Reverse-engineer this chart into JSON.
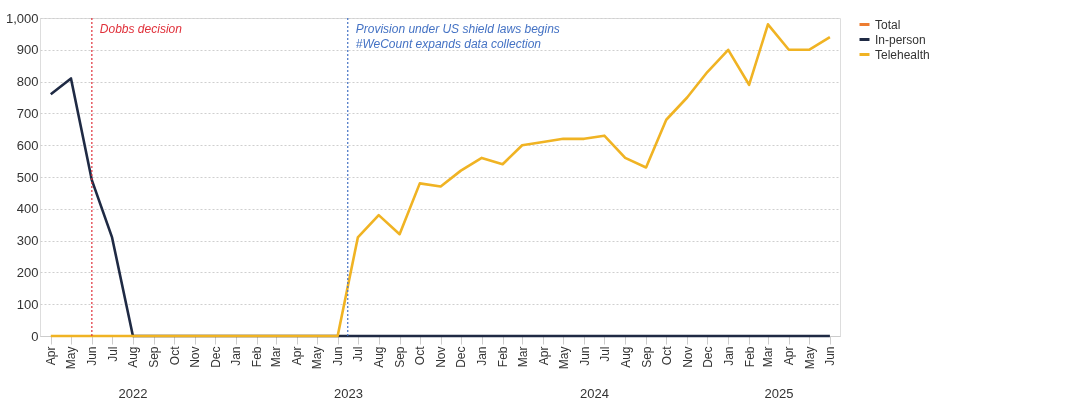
{
  "chart_data": {
    "type": "line",
    "x": [
      "2022-04",
      "2022-05",
      "2022-06",
      "2022-07",
      "2022-08",
      "2022-09",
      "2022-10",
      "2022-11",
      "2022-12",
      "2023-01",
      "2023-02",
      "2023-03",
      "2023-04",
      "2023-05",
      "2023-06",
      "2023-07",
      "2023-08",
      "2023-09",
      "2023-10",
      "2023-11",
      "2023-12",
      "2024-01",
      "2024-02",
      "2024-03",
      "2024-04",
      "2024-05",
      "2024-06",
      "2024-07",
      "2024-08",
      "2024-09",
      "2024-10",
      "2024-11",
      "2024-12",
      "2025-01",
      "2025-02",
      "2025-03",
      "2025-04",
      "2025-05",
      "2025-06"
    ],
    "series": [
      {
        "name": "Total",
        "color": "#ed7d31",
        "values": [
          null,
          null,
          null,
          null,
          null,
          null,
          null,
          null,
          null,
          null,
          null,
          null,
          null,
          null,
          null,
          null,
          null,
          null,
          null,
          null,
          null,
          null,
          null,
          null,
          null,
          null,
          null,
          null,
          null,
          null,
          null,
          null,
          null,
          null,
          null,
          null,
          null,
          null,
          null
        ]
      },
      {
        "name": "In-person",
        "color": "#1f2a44",
        "values": [
          760,
          810,
          490,
          310,
          0,
          0,
          0,
          0,
          0,
          0,
          0,
          0,
          0,
          0,
          0,
          0,
          0,
          0,
          0,
          0,
          0,
          0,
          0,
          0,
          0,
          0,
          0,
          0,
          0,
          0,
          0,
          0,
          0,
          0,
          0,
          0,
          0,
          0,
          0
        ]
      },
      {
        "name": "Telehealth",
        "color": "#f0b323",
        "values": [
          0,
          0,
          0,
          0,
          0,
          0,
          0,
          0,
          0,
          0,
          0,
          0,
          0,
          0,
          0,
          310,
          380,
          320,
          480,
          470,
          520,
          560,
          540,
          600,
          610,
          620,
          620,
          630,
          560,
          530,
          680,
          750,
          830,
          900,
          790,
          980,
          900,
          900,
          940
        ]
      }
    ],
    "xlim": [
      "2022-03-16",
      "2025-06-16"
    ],
    "xticks": [
      {
        "value": "2022-04",
        "label": "Apr"
      },
      {
        "value": "2022-05",
        "label": "May"
      },
      {
        "value": "2022-06",
        "label": "Jun"
      },
      {
        "value": "2022-07",
        "label": "Jul"
      },
      {
        "value": "2022-08",
        "label": "Aug"
      },
      {
        "value": "2022-09",
        "label": "Sep"
      },
      {
        "value": "2022-10",
        "label": "Oct"
      },
      {
        "value": "2022-11",
        "label": "Nov"
      },
      {
        "value": "2022-12",
        "label": "Dec"
      },
      {
        "value": "2023-01",
        "label": "Jan"
      },
      {
        "value": "2023-02",
        "label": "Feb"
      },
      {
        "value": "2023-03",
        "label": "Mar"
      },
      {
        "value": "2023-04",
        "label": "Apr"
      },
      {
        "value": "2023-05",
        "label": "May"
      },
      {
        "value": "2023-06",
        "label": "Jun"
      },
      {
        "value": "2023-07",
        "label": "Jul"
      },
      {
        "value": "2023-08",
        "label": "Aug"
      },
      {
        "value": "2023-09",
        "label": "Sep"
      },
      {
        "value": "2023-10",
        "label": "Oct"
      },
      {
        "value": "2023-11",
        "label": "Nov"
      },
      {
        "value": "2023-12",
        "label": "Dec"
      },
      {
        "value": "2024-01",
        "label": "Jan"
      },
      {
        "value": "2024-02",
        "label": "Feb"
      },
      {
        "value": "2024-03",
        "label": "Mar"
      },
      {
        "value": "2024-04",
        "label": "Apr"
      },
      {
        "value": "2024-05",
        "label": "May"
      },
      {
        "value": "2024-06",
        "label": "Jun"
      },
      {
        "value": "2024-07",
        "label": "Jul"
      },
      {
        "value": "2024-08",
        "label": "Aug"
      },
      {
        "value": "2024-09",
        "label": "Sep"
      },
      {
        "value": "2024-10",
        "label": "Oct"
      },
      {
        "value": "2024-11",
        "label": "Nov"
      },
      {
        "value": "2024-12",
        "label": "Dec"
      },
      {
        "value": "2025-01",
        "label": "Jan"
      },
      {
        "value": "2025-02",
        "label": "Feb"
      },
      {
        "value": "2025-03",
        "label": "Mar"
      },
      {
        "value": "2025-04",
        "label": "Apr"
      },
      {
        "value": "2025-05",
        "label": "May"
      },
      {
        "value": "2025-06",
        "label": "Jun"
      }
    ],
    "ylim": [
      0,
      1000
    ],
    "yticks": [
      0,
      100,
      200,
      300,
      400,
      500,
      600,
      700,
      800,
      900,
      {
        "value": 1000,
        "label": "1,000"
      }
    ],
    "grid": "y",
    "legend": "right",
    "line_style": "solid",
    "marker": "none",
    "ref_lines": [
      {
        "axis": "x",
        "value": "2022-06",
        "label": "Dobbs decision",
        "color": "#e0303a",
        "line_style": "dotted"
      },
      {
        "axis": "x",
        "value": "2023-06-16",
        "label": "Provision under US shield laws begins\n#WeCount expands data collection",
        "color": "#4472c4",
        "line_style": "dotted"
      }
    ],
    "annotations": [
      "2022",
      "2023",
      "2024",
      "2025"
    ]
  }
}
